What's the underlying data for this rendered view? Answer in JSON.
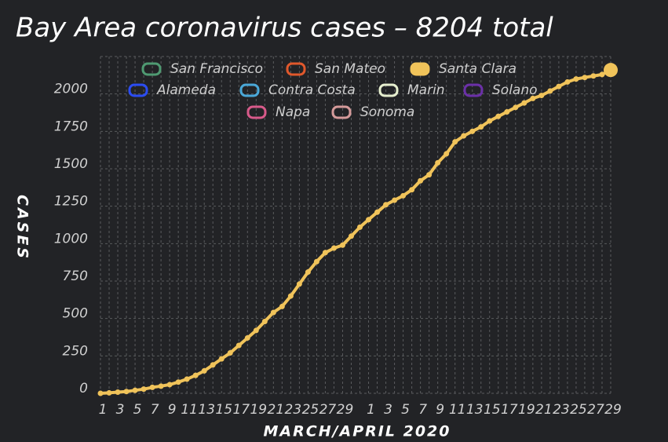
{
  "chart_data": {
    "type": "line",
    "title": "Bay Area coronavirus cases – 8204 total",
    "x_label": "MARCH/APRIL 2020",
    "y_label": "CASES",
    "categories": [
      "1",
      null,
      "3",
      null,
      "5",
      null,
      "7",
      null,
      "9",
      null,
      "11",
      null,
      "13",
      null,
      "15",
      null,
      "17",
      null,
      "19",
      null,
      "21",
      null,
      "23",
      null,
      "25",
      null,
      "27",
      null,
      "29",
      null,
      null,
      "1",
      null,
      "3",
      null,
      "5",
      null,
      "7",
      null,
      "9",
      null,
      "11",
      null,
      "13",
      null,
      "15",
      null,
      "17",
      null,
      "19",
      null,
      "21",
      null,
      "23",
      null,
      "25",
      null,
      "27",
      null,
      "29"
    ],
    "series": [
      {
        "name": "Santa Clara",
        "color": "#f0c35a",
        "values": [
          0,
          3,
          8,
          12,
          20,
          28,
          40,
          48,
          58,
          75,
          95,
          120,
          150,
          190,
          230,
          270,
          320,
          370,
          420,
          480,
          540,
          580,
          650,
          730,
          810,
          880,
          940,
          970,
          990,
          1050,
          1110,
          1160,
          1210,
          1260,
          1290,
          1320,
          1360,
          1420,
          1460,
          1540,
          1600,
          1680,
          1720,
          1750,
          1780,
          1820,
          1850,
          1880,
          1910,
          1940,
          1970,
          1990,
          2020,
          2050,
          2080,
          2100,
          2110,
          2120,
          2130,
          2160
        ]
      }
    ],
    "hidden_series": [
      {
        "name": "San Francisco",
        "color": "#4f9a72"
      },
      {
        "name": "San Mateo",
        "color": "#e0582c"
      },
      {
        "name": "Alameda",
        "color": "#2b4cf2"
      },
      {
        "name": "Contra Costa",
        "color": "#4aa8d8"
      },
      {
        "name": "Marin",
        "color": "#e6efcf"
      },
      {
        "name": "Solano",
        "color": "#6b30a8"
      },
      {
        "name": "Napa",
        "color": "#d85a8a"
      },
      {
        "name": "Sonoma",
        "color": "#d49a9a"
      }
    ],
    "ylim": [
      0,
      2250
    ],
    "yticks": [
      0,
      250,
      500,
      750,
      1000,
      1250,
      1500,
      1750,
      2000
    ],
    "grid": true
  }
}
